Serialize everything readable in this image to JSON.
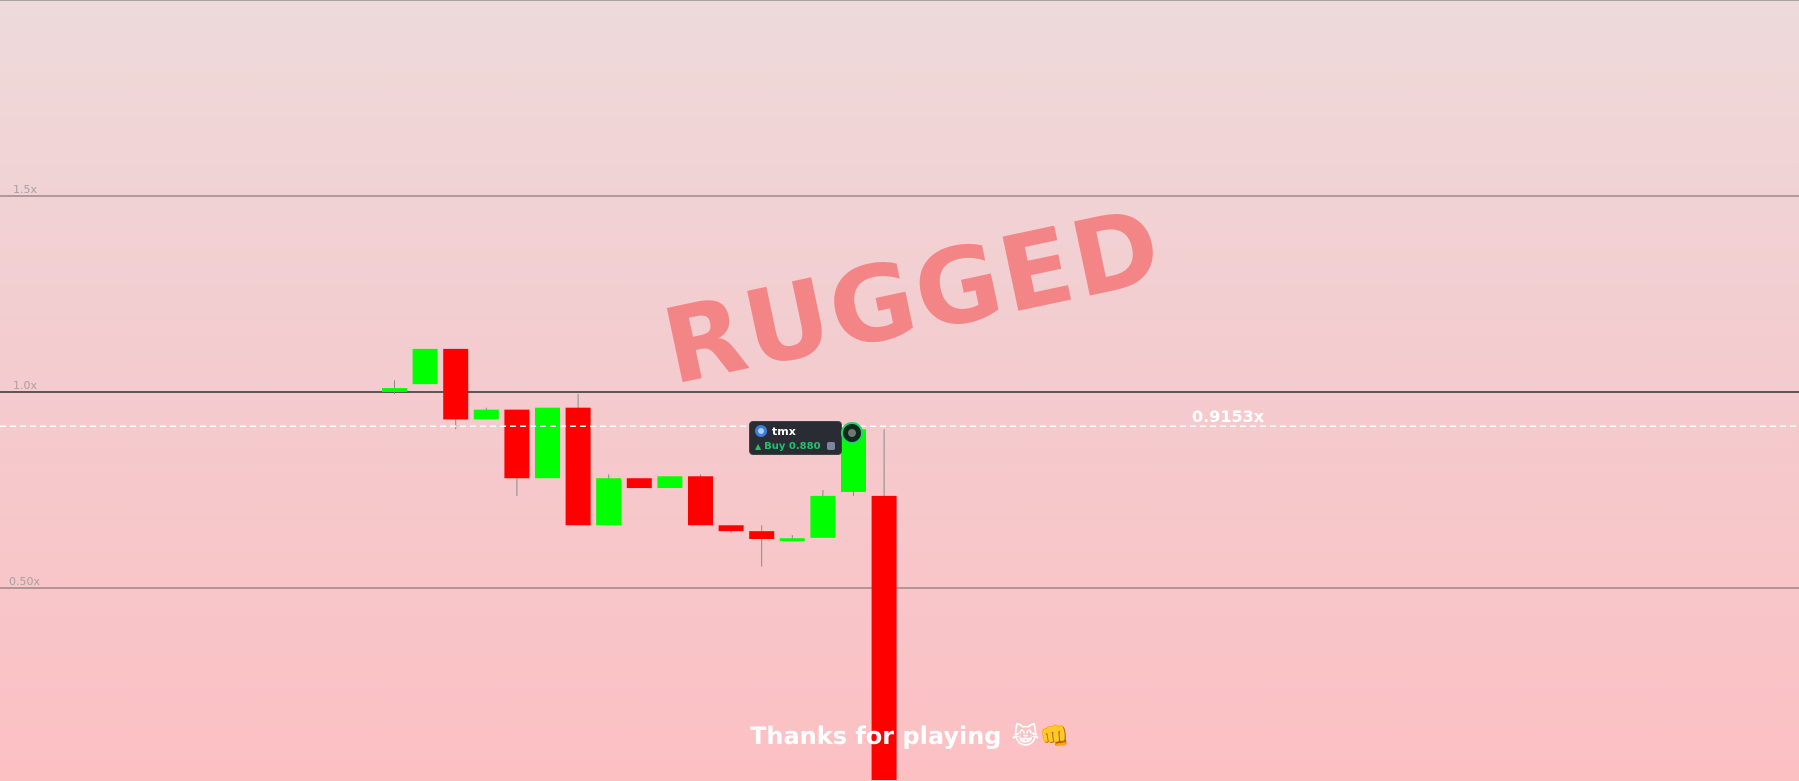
{
  "chart_data": {
    "type": "candlestick",
    "ylim": [
      0.0,
      2.0
    ],
    "gridlines": [
      {
        "value": 1.5,
        "label": "1.5x"
      },
      {
        "value": 1.0,
        "label": "1.0x"
      },
      {
        "value": 0.5,
        "label": "0.50x"
      }
    ],
    "current_value": 0.9153,
    "current_label": "0.9153x",
    "candles": [
      {
        "open": 1.0,
        "high": 1.03,
        "low": 0.995,
        "close": 1.01
      },
      {
        "open": 1.02,
        "high": 1.11,
        "low": 1.02,
        "close": 1.11
      },
      {
        "open": 1.11,
        "high": 1.11,
        "low": 0.905,
        "close": 0.93
      },
      {
        "open": 0.93,
        "high": 0.96,
        "low": 0.93,
        "close": 0.955
      },
      {
        "open": 0.955,
        "high": 0.955,
        "low": 0.735,
        "close": 0.78
      },
      {
        "open": 0.78,
        "high": 0.96,
        "low": 0.78,
        "close": 0.96
      },
      {
        "open": 0.96,
        "high": 0.995,
        "low": 0.66,
        "close": 0.66
      },
      {
        "open": 0.66,
        "high": 0.79,
        "low": 0.66,
        "close": 0.78
      },
      {
        "open": 0.78,
        "high": 0.78,
        "low": 0.755,
        "close": 0.755
      },
      {
        "open": 0.755,
        "high": 0.785,
        "low": 0.755,
        "close": 0.785
      },
      {
        "open": 0.785,
        "high": 0.79,
        "low": 0.66,
        "close": 0.66
      },
      {
        "open": 0.66,
        "high": 0.66,
        "low": 0.64,
        "close": 0.645
      },
      {
        "open": 0.645,
        "high": 0.66,
        "low": 0.555,
        "close": 0.625
      },
      {
        "open": 0.627,
        "high": 0.635,
        "low": 0.62,
        "close": 0.627
      },
      {
        "open": 0.628,
        "high": 0.75,
        "low": 0.628,
        "close": 0.735
      },
      {
        "open": 0.745,
        "high": 0.915,
        "low": 0.735,
        "close": 0.905
      },
      {
        "open": 0.735,
        "high": 0.905,
        "low": 0.0,
        "close": 0.0
      }
    ],
    "colors": {
      "up": "#00ff00",
      "down": "#ff0000",
      "grid": "#555555",
      "current_line": "#ffffff"
    }
  },
  "overlay": {
    "status": "RUGGED",
    "status_color": "#f47f80"
  },
  "trade": {
    "username": "tmx",
    "action": "Buy 0.880",
    "direction": "up",
    "action_color": "#1fc36a"
  },
  "footer": {
    "message": "Thanks for playing",
    "emoji": "😹👊"
  }
}
